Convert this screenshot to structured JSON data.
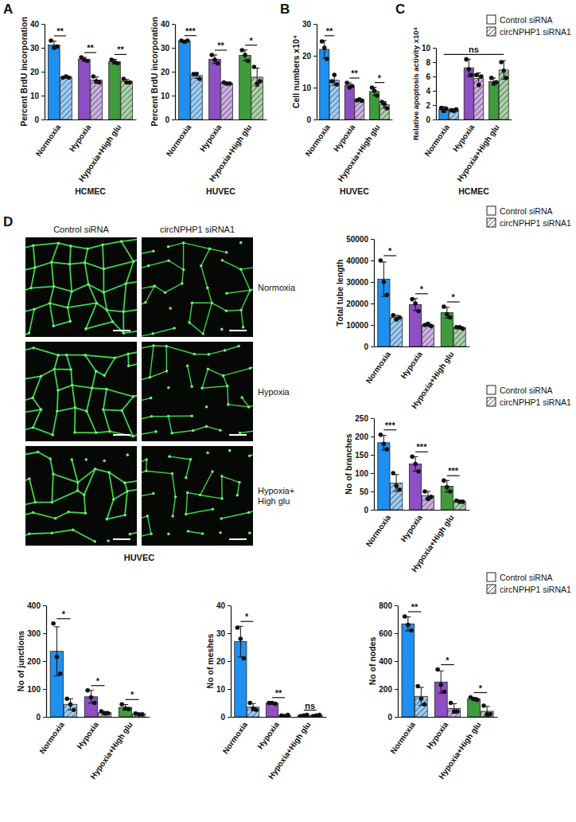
{
  "chart_data": [
    {
      "type": "bar",
      "panel_label": "A",
      "ylabel": "Percent BrdU incorporation",
      "xlabel": "HCMEC",
      "categories": [
        "Normoxia",
        "Hypoxia",
        "Hypoxia+High glu"
      ],
      "colors": [
        "#1e90f0",
        "#8e4fc4",
        "#3f9b3c"
      ],
      "ylim": [
        0,
        40
      ],
      "yticks": [
        0,
        10,
        20,
        30,
        40
      ],
      "series": [
        {
          "name": "Control siRNA",
          "values": [
            31.2,
            25.2,
            24.2
          ],
          "errors": [
            1.6,
            0.8,
            1.0
          ],
          "points": [
            [
              33,
              30,
              30.5
            ],
            [
              26,
              25,
              24.5
            ],
            [
              25,
              24,
              23.5
            ]
          ]
        },
        {
          "name": "circNPHP1 siRNA1",
          "values": [
            17.7,
            16.5,
            16
          ],
          "errors": [
            0.3,
            1.3,
            0.8
          ],
          "points": [
            [
              17.5,
              18,
              17.5
            ],
            [
              18,
              16,
              15.5
            ],
            [
              17,
              15.5,
              15.5
            ]
          ]
        }
      ],
      "significance": [
        {
          "text": "**",
          "from": "Normoxia",
          "to": "Normoxia"
        },
        {
          "text": "**",
          "from": "Hypoxia",
          "to": "Hypoxia"
        },
        {
          "text": "**",
          "from": "Hypoxia+High glu",
          "to": "Hypoxia+High glu"
        }
      ]
    },
    {
      "type": "bar",
      "ylabel": "Percent BrdU incorporation",
      "xlabel": "HUVEC",
      "categories": [
        "Normoxia",
        "Hypoxia",
        "Hypoxia+High glu"
      ],
      "colors": [
        "#1e90f0",
        "#8e4fc4",
        "#3f9b3c"
      ],
      "ylim": [
        0,
        40
      ],
      "yticks": [
        0,
        10,
        20,
        30,
        40
      ],
      "series": [
        {
          "name": "Control siRNA",
          "values": [
            32.8,
            25.2,
            26.8
          ],
          "errors": [
            0.3,
            1.8,
            2.3
          ],
          "points": [
            [
              33,
              32.5,
              33
            ],
            [
              27,
              25,
              23.5
            ],
            [
              29,
              27,
              24.5
            ]
          ]
        },
        {
          "name": "circNPHP1 siRNA1",
          "values": [
            18.4,
            15.2,
            17.7
          ],
          "errors": [
            1.2,
            0.4,
            3.8
          ],
          "points": [
            [
              19,
              19,
              17
            ],
            [
              15.5,
              15,
              15
            ],
            [
              22,
              15,
              16
            ]
          ]
        }
      ],
      "significance": [
        {
          "text": "***",
          "from": "Normoxia",
          "to": "Normoxia"
        },
        {
          "text": "**",
          "from": "Hypoxia",
          "to": "Hypoxia"
        },
        {
          "text": "*",
          "from": "Hypoxia+High glu",
          "to": "Hypoxia+High glu"
        }
      ]
    },
    {
      "type": "bar",
      "panel_label": "B",
      "ylabel": "Cell numbers x10⁴",
      "xlabel": "HUVEC",
      "categories": [
        "Normoxia",
        "Hypoxia",
        "Hypoxia+High glu"
      ],
      "colors": [
        "#1e90f0",
        "#8e4fc4",
        "#3f9b3c"
      ],
      "ylim": [
        0,
        30
      ],
      "yticks": [
        0,
        10,
        20,
        30
      ],
      "series": [
        {
          "name": "Control siRNA",
          "values": [
            22,
            10.7,
            8.8
          ],
          "errors": [
            2.8,
            0.8,
            1.3
          ],
          "points": [
            [
              24.5,
              22.5,
              19
            ],
            [
              11.5,
              10,
              10.5
            ],
            [
              10,
              9,
              7.5
            ]
          ]
        },
        {
          "name": "circNPHP1 siRNA1",
          "values": [
            12.3,
            6.1,
            4.6
          ],
          "errors": [
            1.6,
            0.3,
            1
          ],
          "points": [
            [
              12,
              14,
              11
            ],
            [
              6,
              6.3,
              5.9
            ],
            [
              5.5,
              4.8,
              3.5
            ]
          ]
        }
      ],
      "significance": [
        {
          "text": "**",
          "from": "Normoxia",
          "to": "Normoxia"
        },
        {
          "text": "**",
          "from": "Hypoxia",
          "to": "Hypoxia"
        },
        {
          "text": "*",
          "from": "Hypoxia+High glu",
          "to": "Hypoxia+High glu"
        }
      ]
    },
    {
      "type": "bar",
      "panel_label": "C",
      "ylabel": "Relative apoptosis activity x10⁴",
      "xlabel": "HCMEC",
      "legend": "top-right",
      "categories": [
        "Normoxia",
        "Hypoxia",
        "Hypoxia+High glu"
      ],
      "colors": [
        "#1e90f0",
        "#8e4fc4",
        "#3f9b3c"
      ],
      "ylim": [
        0,
        10
      ],
      "yticks": [
        0,
        2,
        4,
        6,
        8,
        10
      ],
      "series": [
        {
          "name": "Control siRNA",
          "values": [
            1.4,
            7.2,
            5.3
          ],
          "errors": [
            0.4,
            1.2,
            0.5
          ],
          "points": [
            [
              1.6,
              1.2,
              1.5
            ],
            [
              8.4,
              7.0,
              6.2
            ],
            [
              5.8,
              5.0,
              5.2
            ]
          ]
        },
        {
          "name": "circNPHP1 siRNA1",
          "values": [
            1.3,
            5.7,
            6.9
          ],
          "errors": [
            0.2,
            0.8,
            1.3
          ],
          "points": [
            [
              1.3,
              1.2,
              1.4
            ],
            [
              6.2,
              4.8,
              6.0
            ],
            [
              8.0,
              6.8,
              5.8
            ]
          ]
        }
      ],
      "significance": [
        {
          "text": "ns",
          "from": "Normoxia",
          "to": "Hypoxia+High glu"
        }
      ]
    },
    {
      "type": "bar",
      "ylabel": "Total tube length",
      "legend": "top-right",
      "categories": [
        "Normoxia",
        "Hypoxia",
        "Hypoxia+High glu"
      ],
      "colors": [
        "#1e90f0",
        "#8e4fc4",
        "#3f9b3c"
      ],
      "ylim": [
        0,
        50000
      ],
      "yticks": [
        0,
        10000,
        20000,
        30000,
        40000,
        50000
      ],
      "series": [
        {
          "name": "Control siRNA",
          "values": [
            31300,
            19500,
            15700
          ],
          "errors": [
            8000,
            2800,
            2500
          ],
          "points": [
            [
              40000,
              30000,
              24000
            ],
            [
              22000,
              20000,
              16500
            ],
            [
              18500,
              15000,
              13500
            ]
          ]
        },
        {
          "name": "circNPHP1 siRNA1",
          "values": [
            13500,
            10000,
            8800
          ],
          "errors": [
            1000,
            500,
            600
          ],
          "points": [
            [
              14500,
              12500,
              13500
            ],
            [
              10000,
              10500,
              9500
            ],
            [
              9000,
              9000,
              8300
            ]
          ]
        }
      ],
      "significance": [
        {
          "text": "*",
          "from": "Normoxia",
          "to": "Normoxia"
        },
        {
          "text": "*",
          "from": "Hypoxia",
          "to": "Hypoxia"
        },
        {
          "text": "*",
          "from": "Hypoxia+High glu",
          "to": "Hypoxia+High glu"
        }
      ]
    },
    {
      "type": "bar",
      "ylabel": "No of branches",
      "legend": "top-right",
      "categories": [
        "Normoxia",
        "Hypoxia",
        "Hypoxia+High glu"
      ],
      "colors": [
        "#1e90f0",
        "#8e4fc4",
        "#3f9b3c"
      ],
      "ylim": [
        0,
        250
      ],
      "yticks": [
        0,
        50,
        100,
        150,
        200,
        250
      ],
      "series": [
        {
          "name": "Control siRNA",
          "values": [
            183,
            125,
            64
          ],
          "errors": [
            20,
            20,
            16
          ],
          "points": [
            [
              205,
              180,
              165
            ],
            [
              145,
              125,
              105
            ],
            [
              80,
              62,
              50
            ]
          ]
        },
        {
          "name": "circNPHP1 siRNA1",
          "values": [
            73,
            38,
            23
          ],
          "errors": [
            23,
            12,
            2
          ],
          "points": [
            [
              100,
              65,
              55
            ],
            [
              50,
              30,
              35
            ],
            [
              25,
              22,
              22
            ]
          ]
        }
      ],
      "significance": [
        {
          "text": "***",
          "from": "Normoxia",
          "to": "Normoxia"
        },
        {
          "text": "***",
          "from": "Hypoxia",
          "to": "Hypoxia"
        },
        {
          "text": "***",
          "from": "Hypoxia+High glu",
          "to": "Hypoxia+High glu"
        }
      ]
    },
    {
      "type": "bar",
      "ylabel": "No of junctions",
      "categories": [
        "Normoxia",
        "Hypoxia",
        "Hypoxia+High glu"
      ],
      "colors": [
        "#1e90f0",
        "#8e4fc4",
        "#3f9b3c"
      ],
      "ylim": [
        0,
        400
      ],
      "yticks": [
        0,
        100,
        200,
        300,
        400
      ],
      "series": [
        {
          "name": "Control siRNA",
          "values": [
            235,
            72,
            34
          ],
          "errors": [
            88,
            23,
            10
          ],
          "points": [
            [
              335,
              215,
              155
            ],
            [
              95,
              70,
              50
            ],
            [
              45,
              30,
              28
            ]
          ]
        },
        {
          "name": "circNPHP1 siRNA1",
          "values": [
            45,
            15,
            10
          ],
          "errors": [
            20,
            5,
            2
          ],
          "points": [
            [
              65,
              45,
              25
            ],
            [
              20,
              12,
              13
            ],
            [
              12,
              9,
              9
            ]
          ]
        }
      ],
      "significance": [
        {
          "text": "*",
          "from": "Normoxia",
          "to": "Normoxia"
        },
        {
          "text": "*",
          "from": "Hypoxia",
          "to": "Hypoxia"
        },
        {
          "text": "*",
          "from": "Hypoxia+High glu",
          "to": "Hypoxia+High glu"
        }
      ]
    },
    {
      "type": "bar",
      "ylabel": "No of meshes",
      "categories": [
        "Normoxia",
        "Hypoxia",
        "Hypoxia+High glu"
      ],
      "colors": [
        "#1e90f0",
        "#8e4fc4",
        "#3f9b3c"
      ],
      "ylim": [
        0,
        40
      ],
      "yticks": [
        0,
        10,
        20,
        30,
        40
      ],
      "series": [
        {
          "name": "Control siRNA",
          "values": [
            27,
            4.9,
            0.5
          ],
          "errors": [
            5.5,
            0.3,
            0.2
          ],
          "points": [
            [
              32,
              28,
              21
            ],
            [
              5,
              5,
              4.7
            ],
            [
              0.3,
              0.5,
              0.7
            ]
          ]
        },
        {
          "name": "circNPHP1 siRNA1",
          "values": [
            3.5,
            0.5,
            0.5
          ],
          "errors": [
            1.3,
            0.2,
            0.2
          ],
          "points": [
            [
              5,
              3,
              2.5
            ],
            [
              0.5,
              0.3,
              0.7
            ],
            [
              0.3,
              0.5,
              0.7
            ]
          ]
        }
      ],
      "significance": [
        {
          "text": "*",
          "from": "Normoxia",
          "to": "Normoxia"
        },
        {
          "text": "**",
          "from": "Hypoxia",
          "to": "Hypoxia"
        },
        {
          "text": "ns",
          "from": "Hypoxia+High glu",
          "to": "Hypoxia+High glu"
        }
      ]
    },
    {
      "type": "bar",
      "ylabel": "No of nodes",
      "legend": "top-right",
      "categories": [
        "Normoxia",
        "Hypoxia",
        "Hypoxia+High glu"
      ],
      "colors": [
        "#1e90f0",
        "#8e4fc4",
        "#3f9b3c"
      ],
      "ylim": [
        0,
        800
      ],
      "yticks": [
        0,
        200,
        400,
        600,
        800
      ],
      "series": [
        {
          "name": "Control siRNA",
          "values": [
            667,
            250,
            130
          ],
          "errors": [
            50,
            80,
            10
          ],
          "points": [
            [
              720,
              660,
              620
            ],
            [
              340,
              230,
              180
            ],
            [
              140,
              128,
              122
            ]
          ]
        },
        {
          "name": "circNPHP1 siRNA1",
          "values": [
            147,
            60,
            40
          ],
          "errors": [
            65,
            35,
            35
          ],
          "points": [
            [
              220,
              130,
              90
            ],
            [
              100,
              40,
              40
            ],
            [
              80,
              20,
              20
            ]
          ]
        }
      ],
      "significance": [
        {
          "text": "**",
          "from": "Normoxia",
          "to": "Normoxia"
        },
        {
          "text": "*",
          "from": "Hypoxia",
          "to": "Hypoxia"
        },
        {
          "text": "*",
          "from": "Hypoxia+High glu",
          "to": "Hypoxia+High glu"
        }
      ]
    }
  ],
  "image_panel": {
    "panel_label": "D",
    "column_headers": [
      "Control siRNA",
      "circNPHP1 siRNA1"
    ],
    "row_labels": [
      "Normoxia",
      "Hypoxia",
      "Hypoxia+ High glu"
    ],
    "caption": "HUVEC"
  }
}
